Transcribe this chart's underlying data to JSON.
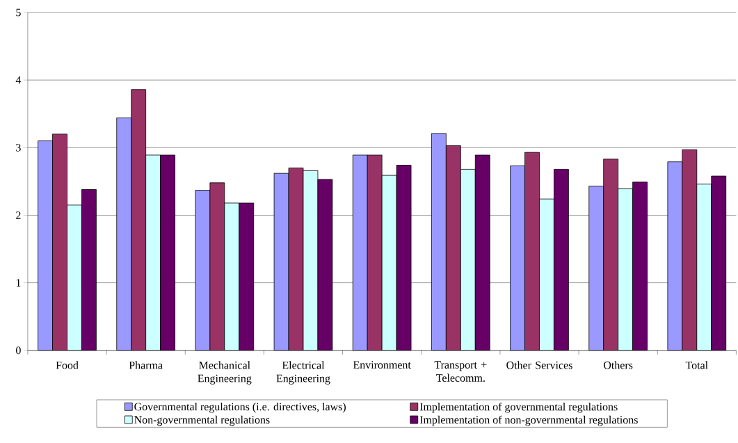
{
  "chart_data": {
    "type": "bar",
    "categories": [
      "Food",
      "Pharma",
      "Mechanical Engineering",
      "Electrical Engineering",
      "Environment",
      "Transport + Telecomm.",
      "Other Services",
      "Others",
      "Total"
    ],
    "series": [
      {
        "name": "Governmental regulations (i.e. directives, laws)",
        "color": "#9999ff",
        "values": [
          3.1,
          3.44,
          2.37,
          2.62,
          2.89,
          3.21,
          2.73,
          2.43,
          2.79
        ]
      },
      {
        "name": "Implementation of governmental regulations",
        "color": "#993366",
        "values": [
          3.2,
          3.86,
          2.48,
          2.7,
          2.89,
          3.03,
          2.93,
          2.83,
          2.97
        ]
      },
      {
        "name": "Non-governmental regulations",
        "color": "#ccffff",
        "values": [
          2.15,
          2.89,
          2.18,
          2.66,
          2.59,
          2.68,
          2.24,
          2.39,
          2.46
        ]
      },
      {
        "name": "Implementation of non-governmental regulations",
        "color": "#660066",
        "values": [
          2.38,
          2.89,
          2.18,
          2.53,
          2.74,
          2.89,
          2.68,
          2.49,
          2.58
        ]
      }
    ],
    "ylim": [
      0,
      5
    ],
    "yticks": [
      0,
      1,
      2,
      3,
      4,
      5
    ],
    "grid": "y",
    "legend": "bottom"
  }
}
